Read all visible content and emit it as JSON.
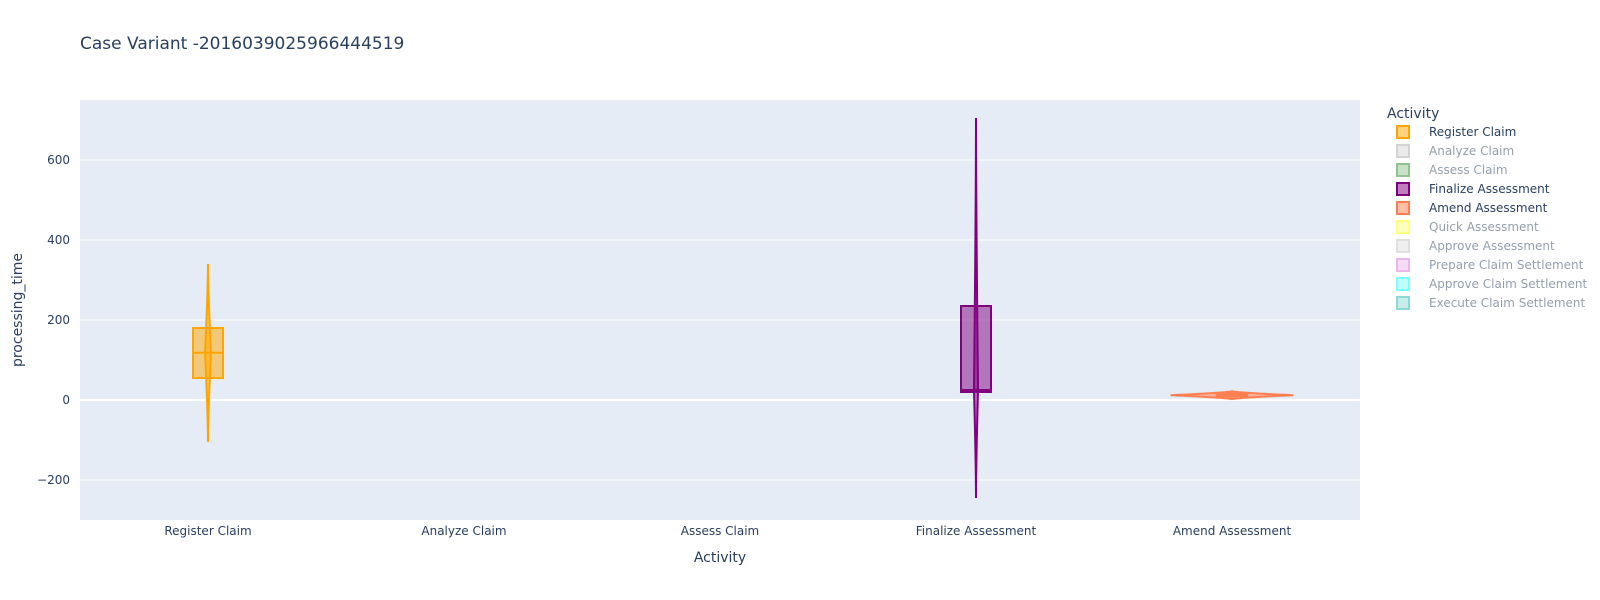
{
  "chart_data": {
    "type": "violin",
    "title": "Case Variant -2016039025966444519",
    "xlabel": "Activity",
    "ylabel": "processing_time",
    "categories": [
      "Register Claim",
      "Analyze Claim",
      "Assess Claim",
      "Finalize Assessment",
      "Amend Assessment"
    ],
    "ylim": [
      -300,
      750
    ],
    "yticks": [
      -200,
      0,
      200,
      400,
      600
    ],
    "ytick_labels": [
      "−200",
      "0",
      "200",
      "400",
      "600"
    ],
    "grid": true,
    "legend": {
      "title": "Activity",
      "placement": "right",
      "entries": [
        {
          "name": "Register Claim",
          "color": "#FFA500",
          "active": true
        },
        {
          "name": "Analyze Claim",
          "color": "#A9A9A9",
          "active": false
        },
        {
          "name": "Assess Claim",
          "color": "#228B22",
          "active": false
        },
        {
          "name": "Finalize Assessment",
          "color": "#800080",
          "active": true
        },
        {
          "name": "Amend Assessment",
          "color": "#FF7F50",
          "active": true
        },
        {
          "name": "Quick Assessment",
          "color": "#FFFF00",
          "active": false
        },
        {
          "name": "Approve Assessment",
          "color": "#C0C0C0",
          "active": false
        },
        {
          "name": "Prepare Claim Settlement",
          "color": "#DA70D6",
          "active": false
        },
        {
          "name": "Approve Claim Settlement",
          "color": "#00FFFF",
          "active": false
        },
        {
          "name": "Execute Claim Settlement",
          "color": "#20B2AA",
          "active": false
        }
      ]
    },
    "series": [
      {
        "name": "Register Claim",
        "category": "Register Claim",
        "color": "#FFA500",
        "min": -105,
        "max": 340,
        "q1": 55,
        "median": 118,
        "q3": 180,
        "half_width_cat": 0.012
      },
      {
        "name": "Finalize Assessment",
        "category": "Finalize Assessment",
        "color": "#800080",
        "min": -245,
        "max": 705,
        "q1": 20,
        "median": 25,
        "q3": 235,
        "half_width_cat": 0.008
      },
      {
        "name": "Amend Assessment",
        "category": "Amend Assessment",
        "color": "#FF7F50",
        "min": 2,
        "max": 22,
        "q1": 9,
        "median": 12,
        "q3": 16,
        "half_width_cat": 0.24
      }
    ]
  }
}
